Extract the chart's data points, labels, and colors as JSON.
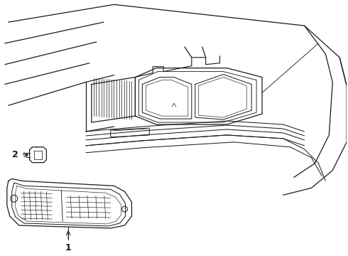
{
  "background_color": "#ffffff",
  "line_color": "#1a1a1a",
  "lw": 0.9,
  "fig_width": 4.9,
  "fig_height": 3.6,
  "dpi": 100,
  "label1": "1",
  "label2": "2"
}
